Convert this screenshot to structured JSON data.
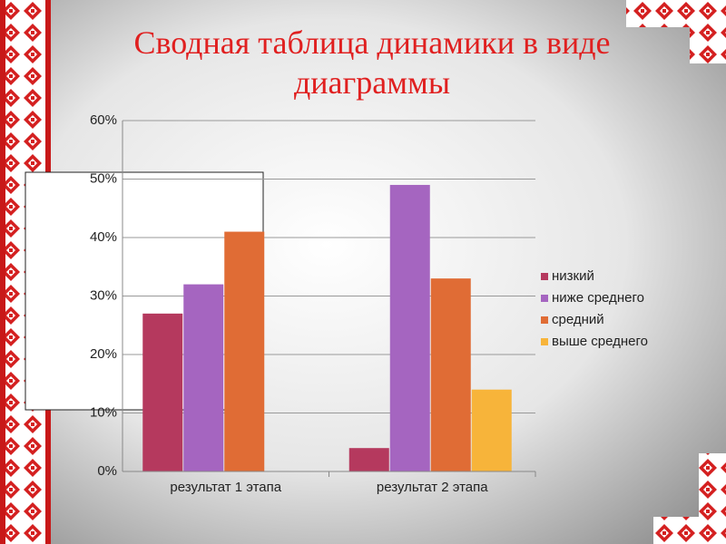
{
  "chart_data": {
    "type": "bar",
    "title": "Сводная таблица динамики в виде диаграммы",
    "categories": [
      "результат 1 этапа",
      "результат 2 этапа"
    ],
    "series": [
      {
        "name": "низкий",
        "color": "#b5395e",
        "values": [
          27,
          4
        ]
      },
      {
        "name": "ниже среднего",
        "color": "#a565c0",
        "values": [
          32,
          49
        ]
      },
      {
        "name": "средний",
        "color": "#e06c35",
        "values": [
          41,
          33
        ]
      },
      {
        "name": "выше среднего",
        "color": "#f7b43a",
        "values": [
          0,
          14
        ]
      }
    ],
    "ylim": [
      0,
      60
    ],
    "yticks": [
      {
        "value": 0,
        "label": "0%"
      },
      {
        "value": 10,
        "label": "10%"
      },
      {
        "value": 20,
        "label": "20%"
      },
      {
        "value": 30,
        "label": "30%"
      },
      {
        "value": 40,
        "label": "40%"
      },
      {
        "value": 50,
        "label": "50%"
      },
      {
        "value": 60,
        "label": "60%"
      }
    ],
    "grid": true,
    "legend": "right"
  }
}
